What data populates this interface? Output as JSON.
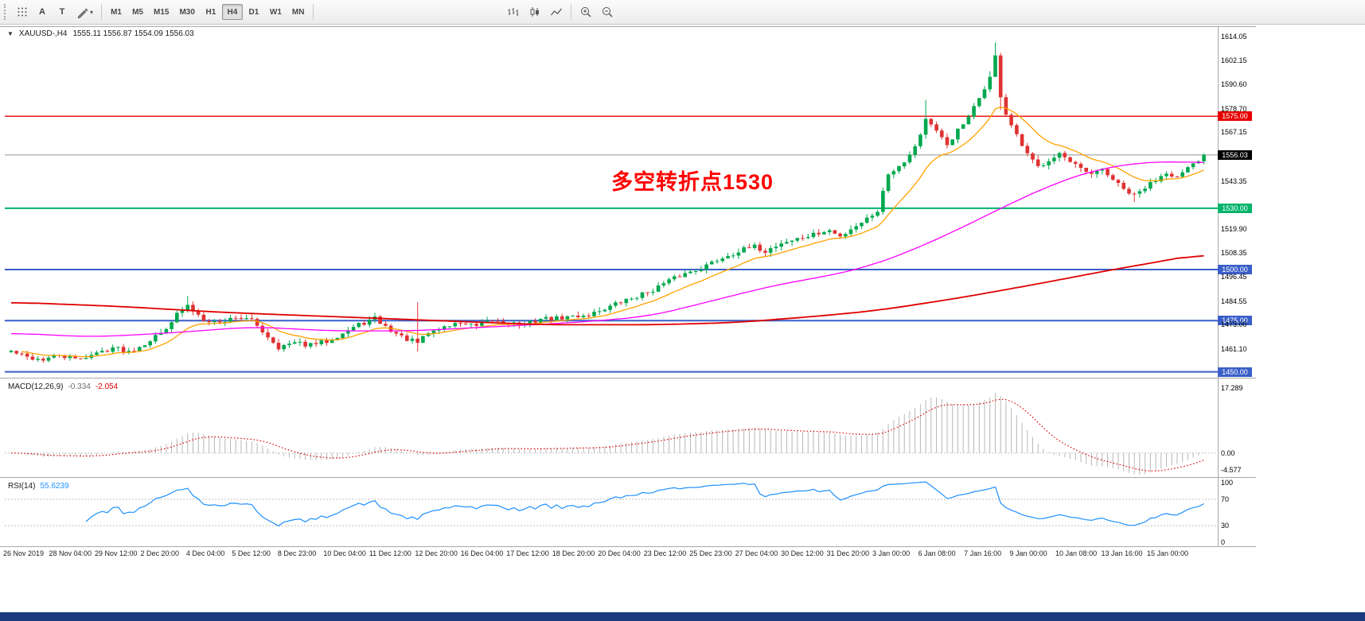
{
  "window": {
    "bottom_bar_color": "#1c3a7e"
  },
  "toolbar": {
    "text_button_label": "A",
    "label_button_label": "T",
    "timeframes": [
      "M1",
      "M5",
      "M15",
      "M30",
      "H1",
      "H4",
      "D1",
      "W1",
      "MN"
    ],
    "active_timeframe": "H4",
    "icons": [
      "snap-grid",
      "insert-text",
      "text-label",
      "drawing-tools",
      "bar-chart",
      "candlestick-chart",
      "line-chart",
      "zoom-in",
      "zoom-out"
    ]
  },
  "chart": {
    "symbol_label": "XAUUSD-,H4",
    "ohlc_label": "1555.11 1556.87 1554.09 1556.03",
    "annotation": {
      "text": "多空转折点1530",
      "color": "#ff0000"
    },
    "bid_price": 1556.03,
    "bid_badge": {
      "text": "1556.03",
      "color": "#000000"
    },
    "levels": [
      {
        "price": 1575.0,
        "text": "1575.00",
        "color": "#e60000",
        "width": 1.4
      },
      {
        "price": 1530.0,
        "text": "1530.00",
        "color": "#00b36b",
        "width": 2
      },
      {
        "price": 1500.0,
        "text": "1500.00",
        "color": "#3a5fc8",
        "width": 2
      },
      {
        "price": 1475.0,
        "text": "1475.00",
        "color": "#3a5fc8",
        "width": 2
      },
      {
        "price": 1450.0,
        "text": "1450.00",
        "color": "#3a5fc8",
        "width": 2
      }
    ],
    "axis_ticks": [
      "1614.05",
      "1602.15",
      "1590.60",
      "1578.70",
      "1567.15",
      "1543.35",
      "1519.90",
      "1508.35",
      "1496.45",
      "1484.55",
      "1473.00",
      "1461.10"
    ]
  },
  "chart_data": {
    "type": "candlestick",
    "symbol": "XAUUSD",
    "timeframe": "H4",
    "bars": 224,
    "price_range": {
      "min": 1447.5,
      "max": 1619
    },
    "final_close": 1556.03,
    "up_color": "#00a84e",
    "down_color": "#e03232",
    "close_anchors": [
      [
        0,
        1460
      ],
      [
        3,
        1457
      ],
      [
        6,
        1456
      ],
      [
        9,
        1458
      ],
      [
        12,
        1456
      ],
      [
        16,
        1459
      ],
      [
        19,
        1462
      ],
      [
        22,
        1460
      ],
      [
        25,
        1464
      ],
      [
        28,
        1469
      ],
      [
        31,
        1478
      ],
      [
        33,
        1482
      ],
      [
        36,
        1476
      ],
      [
        39,
        1474
      ],
      [
        42,
        1477
      ],
      [
        45,
        1475
      ],
      [
        47,
        1470
      ],
      [
        50,
        1462
      ],
      [
        53,
        1464
      ],
      [
        56,
        1463
      ],
      [
        59,
        1465
      ],
      [
        62,
        1469
      ],
      [
        65,
        1473
      ],
      [
        68,
        1476
      ],
      [
        70,
        1472
      ],
      [
        73,
        1467
      ],
      [
        76,
        1464
      ],
      [
        78,
        1469
      ],
      [
        81,
        1472
      ],
      [
        84,
        1474
      ],
      [
        87,
        1472
      ],
      [
        90,
        1475
      ],
      [
        93,
        1474
      ],
      [
        96,
        1473
      ],
      [
        99,
        1476
      ],
      [
        102,
        1476
      ],
      [
        105,
        1477
      ],
      [
        108,
        1478
      ],
      [
        110,
        1480
      ],
      [
        113,
        1483
      ],
      [
        116,
        1486
      ],
      [
        119,
        1489
      ],
      [
        122,
        1493
      ],
      [
        125,
        1497
      ],
      [
        127,
        1499
      ],
      [
        130,
        1502
      ],
      [
        133,
        1506
      ],
      [
        136,
        1509
      ],
      [
        139,
        1511
      ],
      [
        141,
        1509
      ],
      [
        144,
        1513
      ],
      [
        147,
        1515
      ],
      [
        150,
        1517
      ],
      [
        153,
        1519
      ],
      [
        155,
        1516
      ],
      [
        157,
        1520
      ],
      [
        160,
        1525
      ],
      [
        162,
        1529
      ],
      [
        164,
        1547
      ],
      [
        166,
        1551
      ],
      [
        168,
        1556
      ],
      [
        170,
        1566
      ],
      [
        171,
        1574
      ],
      [
        173,
        1567
      ],
      [
        175,
        1561
      ],
      [
        177,
        1568
      ],
      [
        179,
        1574
      ],
      [
        181,
        1584
      ],
      [
        183,
        1594
      ],
      [
        184,
        1604
      ],
      [
        185,
        1585
      ],
      [
        186,
        1576
      ],
      [
        188,
        1565
      ],
      [
        190,
        1556
      ],
      [
        192,
        1550
      ],
      [
        194,
        1554
      ],
      [
        196,
        1557
      ],
      [
        198,
        1552
      ],
      [
        200,
        1549
      ],
      [
        202,
        1546
      ],
      [
        204,
        1549
      ],
      [
        206,
        1544
      ],
      [
        208,
        1539
      ],
      [
        210,
        1536
      ],
      [
        212,
        1540
      ],
      [
        214,
        1544
      ],
      [
        216,
        1548
      ],
      [
        218,
        1545
      ],
      [
        220,
        1549
      ],
      [
        222,
        1553
      ],
      [
        223,
        1556.03
      ]
    ],
    "wick_overrides": [
      {
        "i": 33,
        "high": 1487
      },
      {
        "i": 76,
        "high": 1484,
        "low": 1460
      },
      {
        "i": 171,
        "high": 1583
      },
      {
        "i": 183,
        "high": 1597
      },
      {
        "i": 184,
        "high": 1611
      },
      {
        "i": 185,
        "low": 1578
      },
      {
        "i": 210,
        "low": 1533
      }
    ],
    "moving_averages": {
      "fast": {
        "type": "ema",
        "period": 13,
        "color": "#ffa200"
      },
      "mid": {
        "color": "#ff00ff",
        "anchors": [
          [
            0,
            1469
          ],
          [
            15,
            1467
          ],
          [
            30,
            1469
          ],
          [
            45,
            1472
          ],
          [
            60,
            1470
          ],
          [
            75,
            1470
          ],
          [
            90,
            1472
          ],
          [
            105,
            1474
          ],
          [
            119,
            1477
          ],
          [
            127,
            1482
          ],
          [
            136,
            1488
          ],
          [
            144,
            1493
          ],
          [
            153,
            1497
          ],
          [
            161,
            1502
          ],
          [
            168,
            1509
          ],
          [
            175,
            1517
          ],
          [
            182,
            1526
          ],
          [
            189,
            1535
          ],
          [
            196,
            1543
          ],
          [
            203,
            1549
          ],
          [
            210,
            1552
          ],
          [
            216,
            1553
          ],
          [
            223,
            1552
          ]
        ]
      },
      "slow": {
        "color": "#e00000",
        "anchors": [
          [
            0,
            1484
          ],
          [
            20,
            1482
          ],
          [
            40,
            1479
          ],
          [
            60,
            1477
          ],
          [
            80,
            1475
          ],
          [
            100,
            1473
          ],
          [
            120,
            1473
          ],
          [
            135,
            1474
          ],
          [
            150,
            1477
          ],
          [
            162,
            1480
          ],
          [
            177,
            1486
          ],
          [
            192,
            1493
          ],
          [
            206,
            1500
          ],
          [
            215,
            1504
          ],
          [
            223,
            1508
          ]
        ]
      }
    },
    "x_labels": [
      "26 Nov 2019",
      "28 Nov 04:00",
      "29 Nov 12:00",
      "2 Dec 20:00",
      "4 Dec 04:00",
      "5 Dec 12:00",
      "8 Dec 23:00",
      "10 Dec 04:00",
      "11 Dec 12:00",
      "12 Dec 20:00",
      "16 Dec 04:00",
      "17 Dec 12:00",
      "18 Dec 20:00",
      "20 Dec 04:00",
      "23 Dec 12:00",
      "25 Dec 23:00",
      "27 Dec 04:00",
      "30 Dec 12:00",
      "31 Dec 20:00",
      "3 Jan 00:00",
      "6 Jan 08:00",
      "7 Jan 16:00",
      "9 Jan 00:00",
      "10 Jan 08:00",
      "13 Jan 16:00",
      "15 Jan 00:00"
    ],
    "macd": {
      "label": "MACD(12,26,9)",
      "value_main": "-0.334",
      "value_signal": "-2.054",
      "fast": 12,
      "slow": 26,
      "signal": 9,
      "hist_color": "#b6b6b6",
      "signal_color": "#dd0000",
      "range": {
        "min": -6.2,
        "max": 19.5
      },
      "axis": [
        {
          "v": 17.289,
          "text": "17.289"
        },
        {
          "v": 0,
          "text": "0.00"
        },
        {
          "v": -4.577,
          "text": "-4.577"
        }
      ]
    },
    "rsi": {
      "label": "RSI(14)",
      "value": "55.6239",
      "period": 14,
      "color": "#1e90ff",
      "levels": [
        30,
        70
      ],
      "range": {
        "min": 0,
        "max": 100
      },
      "axis": [
        {
          "v": 100,
          "text": "100"
        },
        {
          "v": 70,
          "text": "70"
        },
        {
          "v": 30,
          "text": "30"
        },
        {
          "v": 0,
          "text": "0"
        }
      ]
    }
  }
}
